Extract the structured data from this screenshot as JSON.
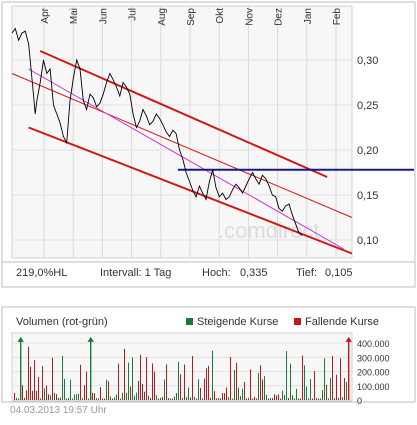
{
  "chart_data": [
    {
      "type": "line",
      "months": [
        "Apr",
        "Mai",
        "Jun",
        "Jul",
        "Aug",
        "Sep",
        "Okt",
        "Nov",
        "Dez",
        "Jan",
        "Feb"
      ],
      "ylim": [
        0.08,
        0.36
      ],
      "yticks": [
        "0,30",
        "0,25",
        "0,20",
        "0,15",
        "0,10"
      ],
      "ytick_values": [
        0.3,
        0.25,
        0.2,
        0.15,
        0.1
      ],
      "watermark": ".comdirect",
      "color": "#000000",
      "price": [
        [
          0,
          0.33
        ],
        [
          2,
          0.335
        ],
        [
          4,
          0.322
        ],
        [
          6,
          0.33
        ],
        [
          8,
          0.332
        ],
        [
          10,
          0.318
        ],
        [
          11,
          0.3
        ],
        [
          12,
          0.28
        ],
        [
          13,
          0.26
        ],
        [
          14,
          0.24
        ],
        [
          15,
          0.255
        ],
        [
          17,
          0.275
        ],
        [
          19,
          0.3
        ],
        [
          21,
          0.285
        ],
        [
          23,
          0.29
        ],
        [
          25,
          0.25
        ],
        [
          27,
          0.24
        ],
        [
          29,
          0.23
        ],
        [
          31,
          0.215
        ],
        [
          33,
          0.208
        ],
        [
          35,
          0.255
        ],
        [
          37,
          0.28
        ],
        [
          39,
          0.3
        ],
        [
          41,
          0.29
        ],
        [
          43,
          0.255
        ],
        [
          45,
          0.245
        ],
        [
          47,
          0.262
        ],
        [
          49,
          0.258
        ],
        [
          51,
          0.248
        ],
        [
          53,
          0.252
        ],
        [
          55,
          0.262
        ],
        [
          57,
          0.275
        ],
        [
          59,
          0.285
        ],
        [
          61,
          0.278
        ],
        [
          63,
          0.27
        ],
        [
          65,
          0.26
        ],
        [
          67,
          0.275
        ],
        [
          69,
          0.27
        ],
        [
          71,
          0.262
        ],
        [
          73,
          0.24
        ],
        [
          75,
          0.225
        ],
        [
          77,
          0.232
        ],
        [
          79,
          0.245
        ],
        [
          81,
          0.238
        ],
        [
          83,
          0.228
        ],
        [
          85,
          0.232
        ],
        [
          87,
          0.24
        ],
        [
          89,
          0.235
        ],
        [
          91,
          0.228
        ],
        [
          93,
          0.22
        ],
        [
          95,
          0.215
        ],
        [
          97,
          0.222
        ],
        [
          99,
          0.218
        ],
        [
          101,
          0.2
        ],
        [
          103,
          0.19
        ],
        [
          105,
          0.175
        ],
        [
          107,
          0.165
        ],
        [
          109,
          0.155
        ],
        [
          111,
          0.148
        ],
        [
          113,
          0.16
        ],
        [
          115,
          0.152
        ],
        [
          117,
          0.145
        ],
        [
          119,
          0.165
        ],
        [
          121,
          0.178
        ],
        [
          123,
          0.158
        ],
        [
          125,
          0.148
        ],
        [
          127,
          0.152
        ],
        [
          129,
          0.145
        ],
        [
          131,
          0.148
        ],
        [
          133,
          0.156
        ],
        [
          135,
          0.162
        ],
        [
          137,
          0.158
        ],
        [
          139,
          0.152
        ],
        [
          141,
          0.16
        ],
        [
          143,
          0.168
        ],
        [
          145,
          0.175
        ],
        [
          147,
          0.168
        ],
        [
          149,
          0.162
        ],
        [
          151,
          0.172
        ],
        [
          153,
          0.168
        ],
        [
          155,
          0.16
        ],
        [
          157,
          0.15
        ],
        [
          159,
          0.148
        ],
        [
          161,
          0.135
        ],
        [
          163,
          0.132
        ],
        [
          165,
          0.138
        ],
        [
          167,
          0.14
        ],
        [
          169,
          0.128
        ],
        [
          171,
          0.118
        ],
        [
          173,
          0.108
        ],
        [
          175,
          0.105
        ]
      ],
      "channel_upper": [
        [
          17,
          0.31
        ],
        [
          190,
          0.17
        ]
      ],
      "channel_mid": [
        [
          0,
          0.285
        ],
        [
          205,
          0.125
        ]
      ],
      "channel_lower": [
        [
          10,
          0.225
        ],
        [
          205,
          0.085
        ]
      ],
      "trend_magenta": [
        [
          10,
          0.29
        ],
        [
          200,
          0.09
        ]
      ],
      "horizontal_line": 0.178,
      "stats": {
        "change": "219,0%HL",
        "interval": "Intervall: 1 Tag",
        "high_label": "Hoch:",
        "high": "0,335",
        "low_label": "Tief:",
        "low": "0,105"
      }
    },
    {
      "type": "bar",
      "title": "Volumen (rot-grün)",
      "legend": [
        {
          "name": "Steigende Kurse",
          "color": "#1a7a3a"
        },
        {
          "name": "Fallende Kurse",
          "color": "#c01818"
        }
      ],
      "ylim": [
        0,
        450000
      ],
      "yticks": [
        "400.000",
        "300.000",
        "200.000",
        "100.000",
        "0"
      ],
      "ytick_values": [
        400000,
        300000,
        200000,
        100000,
        0
      ],
      "timestamp": "04.03.2013 19:57 Uhr"
    }
  ]
}
